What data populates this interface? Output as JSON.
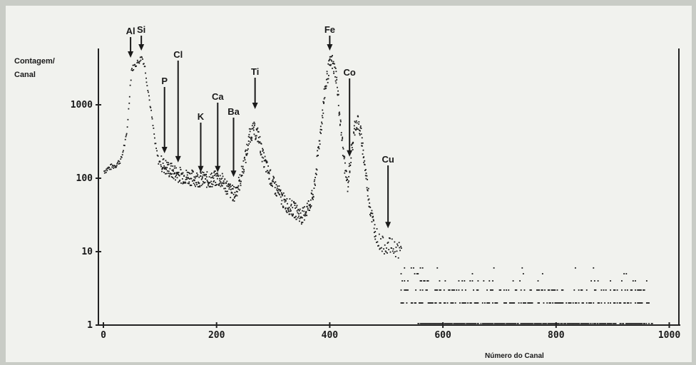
{
  "chart_data": {
    "type": "scatter",
    "ylabel_line1": "Contagem/",
    "ylabel_line2": "Canal",
    "xlabel": "Número do Canal",
    "y_scale": "log",
    "xlim": [
      0,
      1000
    ],
    "ylim": [
      1,
      10000
    ],
    "x_ticks": [
      {
        "value": 0,
        "label": "0"
      },
      {
        "value": 200,
        "label": "200"
      },
      {
        "value": 400,
        "label": "400"
      },
      {
        "value": 600,
        "label": "600"
      },
      {
        "value": 800,
        "label": "800"
      },
      {
        "value": 1000,
        "label": "1000"
      }
    ],
    "y_ticks": [
      {
        "value": 1,
        "label": "1"
      },
      {
        "value": 10,
        "label": "10"
      },
      {
        "value": 100,
        "label": "100"
      },
      {
        "value": 1000,
        "label": "1000"
      }
    ],
    "annotations": [
      {
        "label": "Al",
        "x": 48,
        "y": 4000
      },
      {
        "label": "Si",
        "x": 67,
        "y": 5000
      },
      {
        "label": "P",
        "x": 108,
        "y": 200
      },
      {
        "label": "Cl",
        "x": 132,
        "y": 150
      },
      {
        "label": "K",
        "x": 172,
        "y": 110
      },
      {
        "label": "Ca",
        "x": 202,
        "y": 110
      },
      {
        "label": "Ba",
        "x": 230,
        "y": 95
      },
      {
        "label": "Ti",
        "x": 268,
        "y": 800
      },
      {
        "label": "Fe",
        "x": 400,
        "y": 5000
      },
      {
        "label": "Co",
        "x": 435,
        "y": 180
      },
      {
        "label": "Cu",
        "x": 503,
        "y": 19
      }
    ],
    "series": [
      {
        "anchors": [
          [
            0,
            125
          ],
          [
            10,
            140
          ],
          [
            20,
            150
          ],
          [
            30,
            180
          ],
          [
            40,
            400
          ],
          [
            48,
            3000
          ],
          [
            55,
            3500
          ],
          [
            62,
            4000
          ],
          [
            67,
            4500
          ],
          [
            72,
            3200
          ],
          [
            78,
            1500
          ],
          [
            85,
            600
          ],
          [
            90,
            300
          ],
          [
            96,
            170
          ],
          [
            105,
            150
          ],
          [
            115,
            130
          ],
          [
            125,
            120
          ],
          [
            135,
            110
          ],
          [
            145,
            105
          ],
          [
            160,
            100
          ],
          [
            175,
            95
          ],
          [
            190,
            95
          ],
          [
            200,
            100
          ],
          [
            210,
            90
          ],
          [
            220,
            70
          ],
          [
            230,
            60
          ],
          [
            240,
            90
          ],
          [
            250,
            200
          ],
          [
            258,
            400
          ],
          [
            265,
            450
          ],
          [
            272,
            380
          ],
          [
            280,
            200
          ],
          [
            290,
            120
          ],
          [
            300,
            80
          ],
          [
            310,
            60
          ],
          [
            320,
            45
          ],
          [
            330,
            40
          ],
          [
            340,
            35
          ],
          [
            350,
            30
          ],
          [
            360,
            40
          ],
          [
            370,
            60
          ],
          [
            380,
            300
          ],
          [
            390,
            1500
          ],
          [
            398,
            3500
          ],
          [
            403,
            3800
          ],
          [
            410,
            2500
          ],
          [
            418,
            500
          ],
          [
            425,
            150
          ],
          [
            430,
            80
          ],
          [
            436,
            200
          ],
          [
            443,
            500
          ],
          [
            448,
            600
          ],
          [
            455,
            350
          ],
          [
            462,
            120
          ],
          [
            470,
            40
          ],
          [
            478,
            20
          ],
          [
            485,
            14
          ],
          [
            495,
            12
          ],
          [
            505,
            12
          ],
          [
            515,
            11
          ],
          [
            525,
            10
          ]
        ]
      }
    ],
    "tail_levels": [
      6,
      5,
      4,
      3,
      2
    ]
  }
}
